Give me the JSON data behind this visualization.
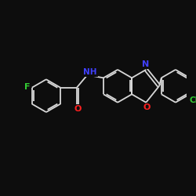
{
  "background_color": "#0d0d0d",
  "bond_color": "#d8d8d8",
  "atom_colors": {
    "F": "#33cc33",
    "N": "#4040ff",
    "O": "#ff2020",
    "Cl": "#33cc33"
  },
  "figsize": [
    2.5,
    2.5
  ],
  "dpi": 100,
  "lw": 1.3,
  "font_size": 7.5
}
